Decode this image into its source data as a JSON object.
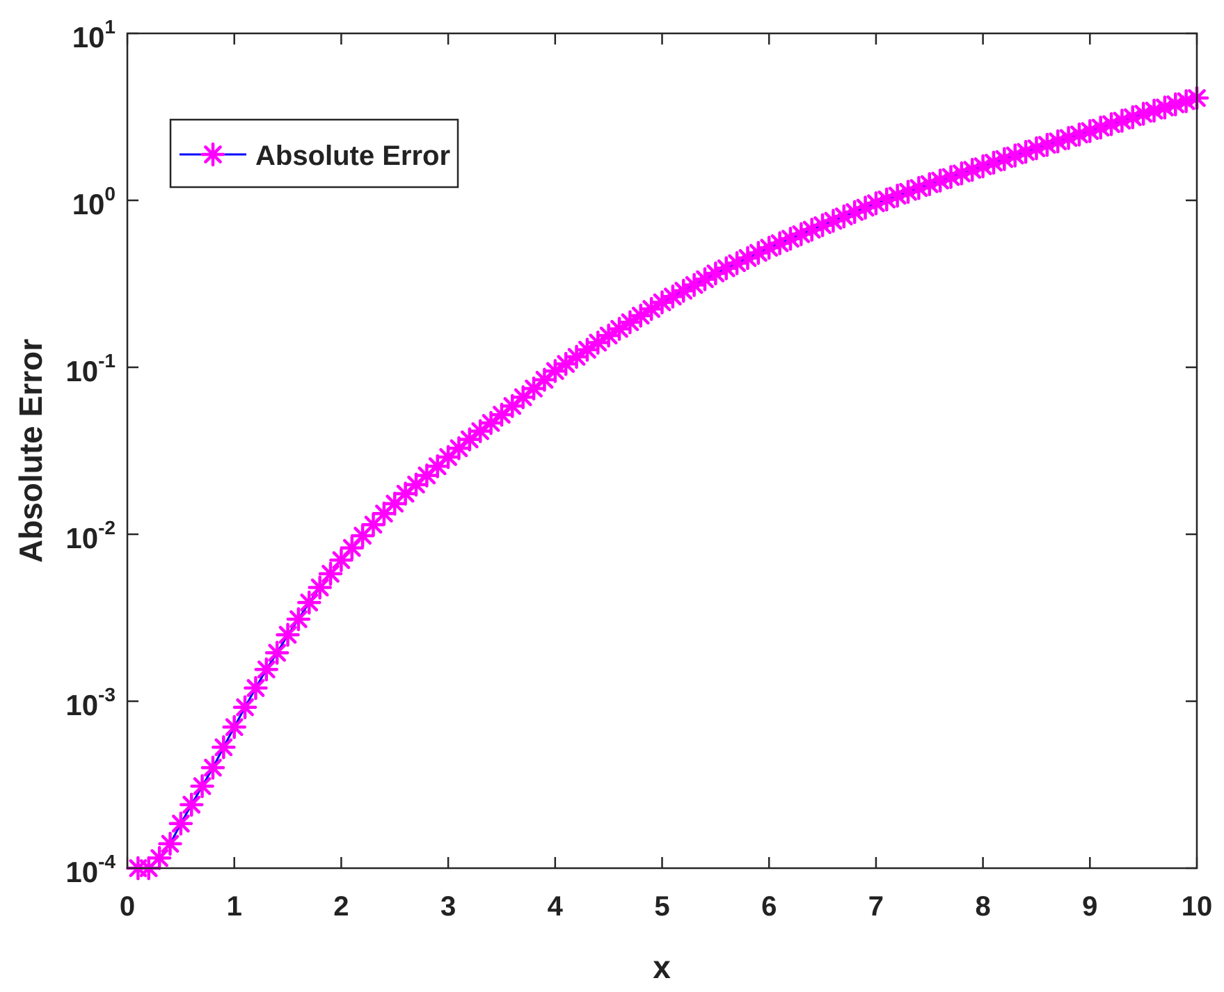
{
  "chart_data": {
    "type": "line",
    "xlabel": "x",
    "ylabel": "Absolute Error",
    "xlim": [
      0,
      10
    ],
    "ylim": [
      0.0001,
      10
    ],
    "yscale": "log",
    "xticks": [
      "0",
      "1",
      "2",
      "3",
      "4",
      "5",
      "6",
      "7",
      "8",
      "9",
      "10"
    ],
    "yticks": [
      {
        "base": "10",
        "exp": "-4",
        "value": 0.0001
      },
      {
        "base": "10",
        "exp": "-3",
        "value": 0.001
      },
      {
        "base": "10",
        "exp": "-2",
        "value": 0.01
      },
      {
        "base": "10",
        "exp": "-1",
        "value": 0.1
      },
      {
        "base": "10",
        "exp": "0",
        "value": 1
      },
      {
        "base": "10",
        "exp": "1",
        "value": 10
      }
    ],
    "legend": {
      "position": "top-left"
    },
    "series": [
      {
        "name": "Absolute Error",
        "line_color": "#0000ff",
        "marker_color": "#ff00ff",
        "marker": "asterisk",
        "x_start": 0.1,
        "x_step": 0.1,
        "x_end": 10,
        "anchors": [
          [
            0.1,
            0.0001
          ],
          [
            0.2,
            0.0001
          ],
          [
            0.3,
            0.000115
          ],
          [
            0.4,
            0.00014
          ],
          [
            0.5,
            0.000185
          ],
          [
            0.6,
            0.00024
          ],
          [
            0.7,
            0.00031
          ],
          [
            0.8,
            0.0004
          ],
          [
            0.9,
            0.00053
          ],
          [
            1.0,
            0.0007
          ],
          [
            1.1,
            0.00092
          ],
          [
            1.2,
            0.0012
          ],
          [
            1.3,
            0.00155
          ],
          [
            1.4,
            0.00195
          ],
          [
            1.5,
            0.0025
          ],
          [
            1.6,
            0.0031
          ],
          [
            1.7,
            0.0039
          ],
          [
            1.8,
            0.0048
          ],
          [
            1.9,
            0.0058
          ],
          [
            2.0,
            0.007
          ],
          [
            2.2,
            0.0098
          ],
          [
            2.4,
            0.0133
          ],
          [
            2.6,
            0.0175
          ],
          [
            2.8,
            0.0225
          ],
          [
            3.0,
            0.029
          ],
          [
            3.2,
            0.037
          ],
          [
            3.5,
            0.052
          ],
          [
            4.0,
            0.095
          ],
          [
            4.5,
            0.155
          ],
          [
            5.0,
            0.245
          ],
          [
            5.5,
            0.365
          ],
          [
            6.0,
            0.52
          ],
          [
            6.5,
            0.71
          ],
          [
            7.0,
            0.96
          ],
          [
            7.5,
            1.25
          ],
          [
            8.0,
            1.6
          ],
          [
            8.5,
            2.05
          ],
          [
            9.0,
            2.6
          ],
          [
            9.5,
            3.3
          ],
          [
            10.0,
            4.1
          ]
        ]
      }
    ]
  }
}
